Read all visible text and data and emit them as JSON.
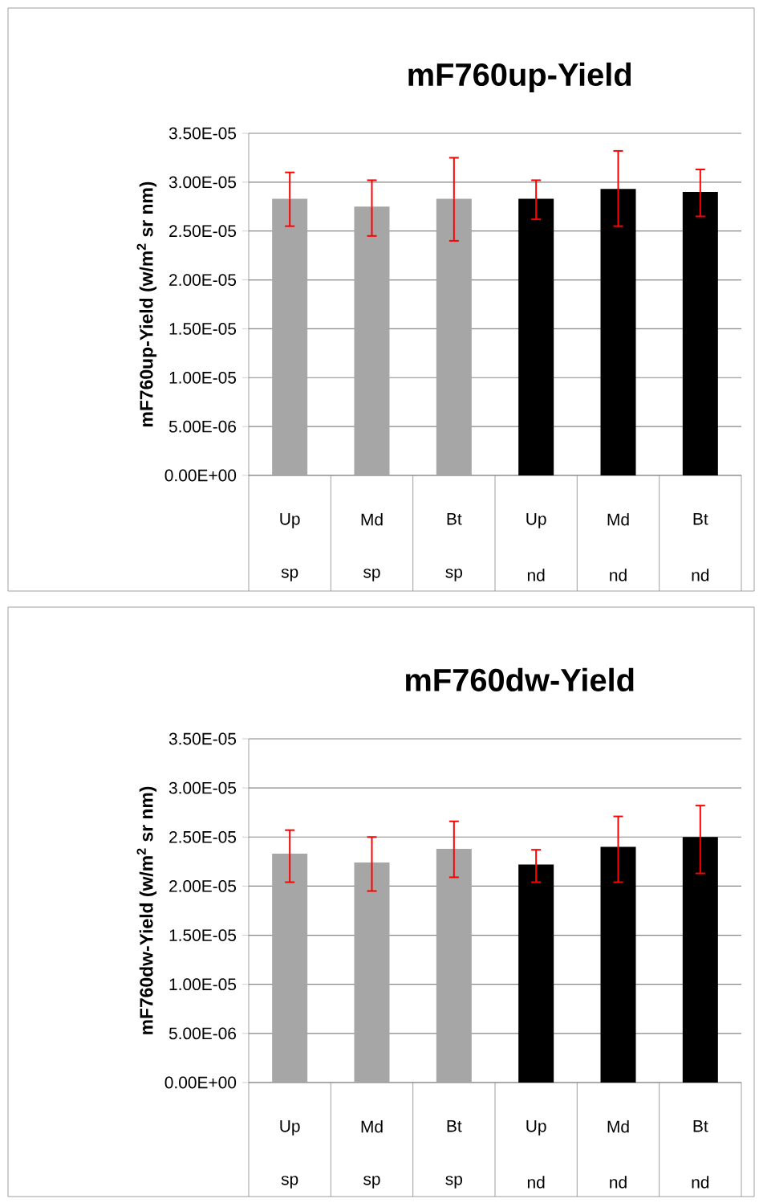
{
  "chart_data": [
    {
      "type": "bar",
      "title": "mF760up-Yield",
      "ylabel": "mF760up-Yield (w/m$^{2}$ sr nm)",
      "categories": [
        "Up",
        "Md",
        "Bt",
        "Up",
        "Md",
        "Bt"
      ],
      "annotations": [
        "sp",
        "sp",
        "sp",
        "nd",
        "nd",
        "nd"
      ],
      "values": [
        2.83e-05,
        2.75e-05,
        2.83e-05,
        2.83e-05,
        2.93e-05,
        2.9e-05
      ],
      "colors": [
        "#a6a6a6",
        "#a6a6a6",
        "#a6a6a6",
        "#000000",
        "#000000",
        "#000000"
      ],
      "errors": [
        [
          2.55e-05,
          3.1e-05
        ],
        [
          2.45e-05,
          3.02e-05
        ],
        [
          2.4e-05,
          3.25e-05
        ],
        [
          2.62e-05,
          3.02e-05
        ],
        [
          2.55e-05,
          3.32e-05
        ],
        [
          2.65e-05,
          3.13e-05
        ]
      ],
      "ylim": [
        0,
        3.5e-05
      ],
      "yticks": [
        {
          "value": 0,
          "label": "0.00E+00"
        },
        {
          "value": 5e-06,
          "label": "5.00E-06"
        },
        {
          "value": 1e-05,
          "label": "1.00E-05"
        },
        {
          "value": 1.5e-05,
          "label": "1.50E-05"
        },
        {
          "value": 2e-05,
          "label": "2.00E-05"
        },
        {
          "value": 2.5e-05,
          "label": "2.50E-05"
        },
        {
          "value": 3e-05,
          "label": "3.00E-05"
        },
        {
          "value": 3.5e-05,
          "label": "3.50E-05"
        }
      ],
      "grid": "y"
    },
    {
      "type": "bar",
      "title": "mF760dw-Yield",
      "ylabel": "mF760dw-Yield (w/m$^{2}$ sr nm)",
      "categories": [
        "Up",
        "Md",
        "Bt",
        "Up",
        "Md",
        "Bt"
      ],
      "annotations": [
        "sp",
        "sp",
        "sp",
        "nd",
        "nd",
        "nd"
      ],
      "values": [
        2.33e-05,
        2.24e-05,
        2.38e-05,
        2.22e-05,
        2.4e-05,
        2.5e-05
      ],
      "colors": [
        "#a6a6a6",
        "#a6a6a6",
        "#a6a6a6",
        "#000000",
        "#000000",
        "#000000"
      ],
      "errors": [
        [
          2.04e-05,
          2.57e-05
        ],
        [
          1.95e-05,
          2.5e-05
        ],
        [
          2.09e-05,
          2.66e-05
        ],
        [
          2.04e-05,
          2.37e-05
        ],
        [
          2.04e-05,
          2.71e-05
        ],
        [
          2.13e-05,
          2.82e-05
        ]
      ],
      "ylim": [
        0,
        3.5e-05
      ],
      "yticks": [
        {
          "value": 0,
          "label": "0.00E+00"
        },
        {
          "value": 5e-06,
          "label": "5.00E-06"
        },
        {
          "value": 1e-05,
          "label": "1.00E-05"
        },
        {
          "value": 1.5e-05,
          "label": "1.50E-05"
        },
        {
          "value": 2e-05,
          "label": "2.00E-05"
        },
        {
          "value": 2.5e-05,
          "label": "2.50E-05"
        },
        {
          "value": 3e-05,
          "label": "3.00E-05"
        },
        {
          "value": 3.5e-05,
          "label": "3.50E-05"
        }
      ],
      "grid": "y"
    }
  ]
}
